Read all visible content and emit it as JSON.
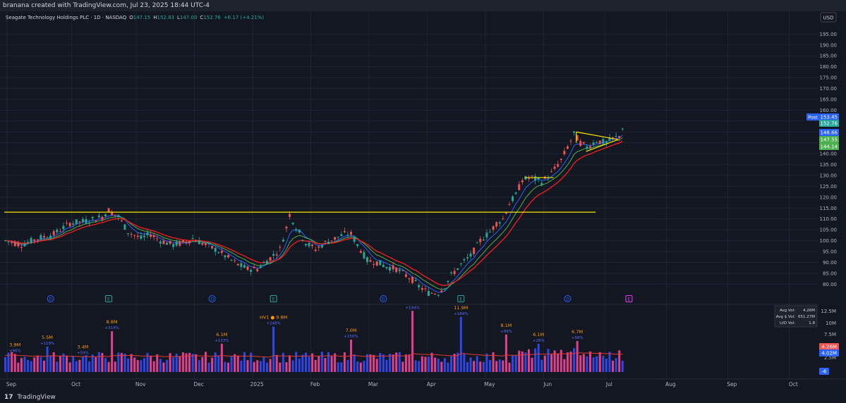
{
  "top_caption": "branana created with TradingView.com, Jul 23, 2025 18:44 UTC-4",
  "legend": {
    "symbol": "Seagate Technology Holdings PLC · 1D · NASDAQ",
    "o_label": "O",
    "o": "147.15",
    "h_label": "H",
    "h": "152.83",
    "l_label": "L",
    "l": "147.00",
    "c_label": "C",
    "c": "152.76",
    "change": "+6.17 (+4.21%)"
  },
  "currency_label": "USD",
  "footer": {
    "logo_glyph": "17",
    "brand": "TradingView"
  },
  "colors": {
    "background": "#131722",
    "grid": "#1f2430",
    "up": "#26a69a",
    "down": "#ef5350",
    "ema_fast": "#2962ff",
    "ema_mid": "#4caf50",
    "ema_slow": "#e91e1e",
    "horizontal_line": "#f7e600",
    "vol_up": "#2e47e6",
    "vol_down": "#e0418e",
    "vol_avg": "#e53935"
  },
  "chart_data": {
    "type": "candlestick",
    "price_axis": {
      "range": [
        72,
        199
      ],
      "ticks": [
        "195.00",
        "190.00",
        "185.00",
        "180.00",
        "175.00",
        "170.00",
        "165.00",
        "160.00",
        "155.00",
        "150.00",
        "145.00",
        "140.00",
        "135.00",
        "130.00",
        "125.00",
        "120.00",
        "115.00",
        "110.00",
        "105.00",
        "100.00",
        "95.00",
        "90.00",
        "85.00",
        "80.00"
      ]
    },
    "price_tags": [
      {
        "label": "Post",
        "value": "153.45",
        "color": "#2962ff"
      },
      {
        "label": "",
        "value": "152.76",
        "color": "#26a69a"
      },
      {
        "label": "",
        "value": "148.66",
        "color": "#2962ff"
      },
      {
        "label": "",
        "value": "147.55",
        "color": "#4caf50"
      },
      {
        "label": "",
        "value": "144.14",
        "color": "#4caf50"
      }
    ],
    "x_axis": {
      "labels": [
        "Sep",
        "Oct",
        "Nov",
        "Dec",
        "2025",
        "Feb",
        "Mar",
        "Apr",
        "May",
        "Jun",
        "Jul",
        "Aug",
        "Sep",
        "Oct"
      ]
    },
    "price_path": [
      [
        0,
        100
      ],
      [
        5,
        98
      ],
      [
        10,
        101
      ],
      [
        15,
        103
      ],
      [
        20,
        108
      ],
      [
        25,
        109
      ],
      [
        30,
        111
      ],
      [
        32,
        114
      ],
      [
        35,
        111
      ],
      [
        38,
        104
      ],
      [
        42,
        101
      ],
      [
        45,
        103
      ],
      [
        48,
        100
      ],
      [
        52,
        98
      ],
      [
        55,
        99
      ],
      [
        58,
        101
      ],
      [
        62,
        98
      ],
      [
        65,
        96
      ],
      [
        68,
        93
      ],
      [
        72,
        89
      ],
      [
        75,
        87
      ],
      [
        78,
        87
      ],
      [
        82,
        92
      ],
      [
        85,
        96
      ],
      [
        87,
        106
      ],
      [
        88,
        112
      ],
      [
        90,
        106
      ],
      [
        93,
        99
      ],
      [
        96,
        96
      ],
      [
        99,
        99
      ],
      [
        102,
        101
      ],
      [
        105,
        103
      ],
      [
        107,
        103
      ],
      [
        109,
        98
      ],
      [
        112,
        91
      ],
      [
        115,
        90
      ],
      [
        118,
        88
      ],
      [
        121,
        87
      ],
      [
        124,
        84
      ],
      [
        126,
        82
      ],
      [
        128,
        79
      ],
      [
        131,
        76
      ],
      [
        134,
        76
      ],
      [
        136,
        79
      ],
      [
        138,
        84
      ],
      [
        141,
        89
      ],
      [
        144,
        93
      ],
      [
        147,
        100
      ],
      [
        150,
        104
      ],
      [
        152,
        108
      ],
      [
        154,
        110
      ],
      [
        156,
        117
      ],
      [
        158,
        121
      ],
      [
        160,
        128
      ],
      [
        163,
        129
      ],
      [
        166,
        127
      ],
      [
        169,
        131
      ],
      [
        172,
        137
      ],
      [
        174,
        143
      ],
      [
        176,
        149
      ],
      [
        178,
        145
      ],
      [
        180,
        143
      ],
      [
        183,
        146
      ],
      [
        186,
        145
      ],
      [
        188,
        147
      ],
      [
        190,
        148
      ],
      [
        191,
        152
      ]
    ],
    "horizontal_line": {
      "value": 113.1
    },
    "moving_averages": [
      {
        "lag": 5,
        "color": "ema_fast"
      },
      {
        "lag": 9,
        "color": "ema_mid"
      },
      {
        "lag": 14,
        "color": "ema_slow"
      }
    ],
    "triangle": {
      "top_start": [
        177,
        150
      ],
      "top_end": [
        190,
        146.5
      ],
      "bottom_start": [
        180,
        141
      ],
      "bottom_end": [
        190,
        146.5
      ]
    },
    "small_range_line": {
      "start": [
        161,
        129
      ],
      "end": [
        170,
        129
      ]
    },
    "event_markers": [
      {
        "x": 14,
        "letter": "D",
        "kind": "dividend"
      },
      {
        "x": 32,
        "letter": "E",
        "kind": "earnings"
      },
      {
        "x": 64,
        "letter": "D",
        "kind": "dividend"
      },
      {
        "x": 83,
        "letter": "E",
        "kind": "earnings"
      },
      {
        "x": 117,
        "letter": "D",
        "kind": "dividend"
      },
      {
        "x": 141,
        "letter": "E",
        "kind": "earnings"
      },
      {
        "x": 174,
        "letter": "D",
        "kind": "dividend"
      },
      {
        "x": 193,
        "letter": "E",
        "kind": "upcoming-earnings"
      }
    ],
    "volume": {
      "axis_ticks": [
        "12.5M",
        "10M",
        "7.5M",
        "5M",
        "2.5M"
      ],
      "axis_max": 14,
      "current_tags": [
        {
          "value": "4.26M",
          "color": "#ef5350"
        },
        {
          "value": "4.02M",
          "color": "#2962ff"
        }
      ],
      "change_tag": "-6",
      "stats": [
        {
          "label": "Avg Vol:",
          "value": "4.26M"
        },
        {
          "label": "Avg $ Vol:",
          "value": "651.27M"
        },
        {
          "label": "U/D Vol:",
          "value": "1.8"
        }
      ],
      "spikes": [
        {
          "x": 3,
          "value": 3.9,
          "label": "3.9M",
          "pct": "+96%"
        },
        {
          "x": 13,
          "value": 5.5,
          "label": "5.5M",
          "pct": "+119%"
        },
        {
          "x": 24,
          "value": 3.4,
          "label": "3.4M",
          "pct": "+59%"
        },
        {
          "x": 33,
          "value": 8.8,
          "label": "8.8M",
          "pct": "+314%"
        },
        {
          "x": 67,
          "value": 6.1,
          "label": "6.1M",
          "pct": "+133%"
        },
        {
          "x": 83,
          "value": 9.8,
          "label": "HV1 ● 9.8M",
          "pct": "+248%"
        },
        {
          "x": 107,
          "value": 7.0,
          "label": "7.0M",
          "pct": "+150%"
        },
        {
          "x": 126,
          "value": 13.2,
          "label": "",
          "pct": "+194%"
        },
        {
          "x": 141,
          "value": 11.9,
          "label": "11.9M",
          "pct": "+184%"
        },
        {
          "x": 155,
          "value": 8.1,
          "label": "8.1M",
          "pct": "+99%"
        },
        {
          "x": 165,
          "value": 6.1,
          "label": "6.1M",
          "pct": "+28%"
        },
        {
          "x": 177,
          "value": 6.7,
          "label": "6.7M",
          "pct": "+58%"
        }
      ]
    }
  }
}
